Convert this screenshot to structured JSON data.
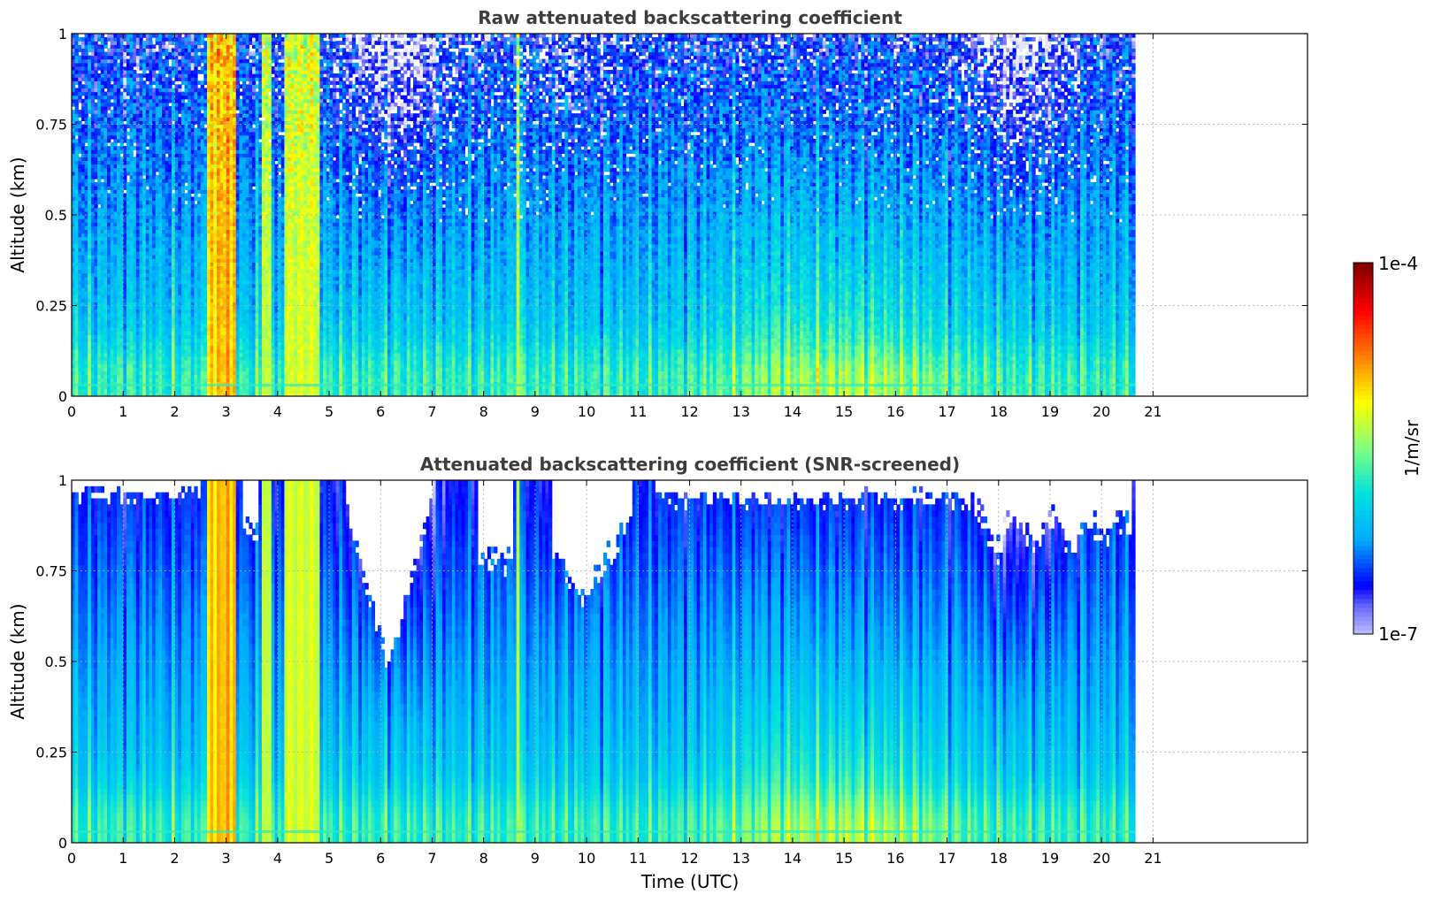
{
  "chart_data": [
    {
      "type": "heatmap",
      "title": "Raw attenuated backscattering coefficient",
      "xlabel": "",
      "ylabel": "Altitude (km)",
      "xlim": [
        0,
        24
      ],
      "ylim": [
        0,
        1
      ],
      "x_ticks": [
        "0",
        "1",
        "2",
        "3",
        "4",
        "5",
        "6",
        "7",
        "8",
        "9",
        "10",
        "11",
        "12",
        "13",
        "14",
        "15",
        "16",
        "17",
        "18",
        "19",
        "20",
        "21"
      ],
      "y_ticks": [
        "0",
        "0.25",
        "0.5",
        "0.75",
        "1"
      ],
      "data_time_range": [
        0,
        20.65
      ],
      "grid": true,
      "screened": false
    },
    {
      "type": "heatmap",
      "title": "Attenuated backscattering coefficient (SNR-screened)",
      "xlabel": "Time (UTC)",
      "ylabel": "Altitude (km)",
      "xlim": [
        0,
        24
      ],
      "ylim": [
        0,
        1
      ],
      "x_ticks": [
        "0",
        "1",
        "2",
        "3",
        "4",
        "5",
        "6",
        "7",
        "8",
        "9",
        "10",
        "11",
        "12",
        "13",
        "14",
        "15",
        "16",
        "17",
        "18",
        "19",
        "20",
        "21"
      ],
      "y_ticks": [
        "0",
        "0.25",
        "0.5",
        "0.75",
        "1"
      ],
      "data_time_range": [
        0,
        20.65
      ],
      "grid": true,
      "screened": true
    }
  ],
  "colorbar": {
    "label": "1/m/sr",
    "max_label": "1e-4",
    "min_label": "1e-7",
    "scale": "log",
    "range": [
      1e-07,
      0.0001
    ],
    "colors": [
      "#e8e8ff",
      "#0000ff",
      "#00aaff",
      "#00e0e0",
      "#80ff80",
      "#ffff00",
      "#ff8000",
      "#ff0000",
      "#800000"
    ]
  }
}
